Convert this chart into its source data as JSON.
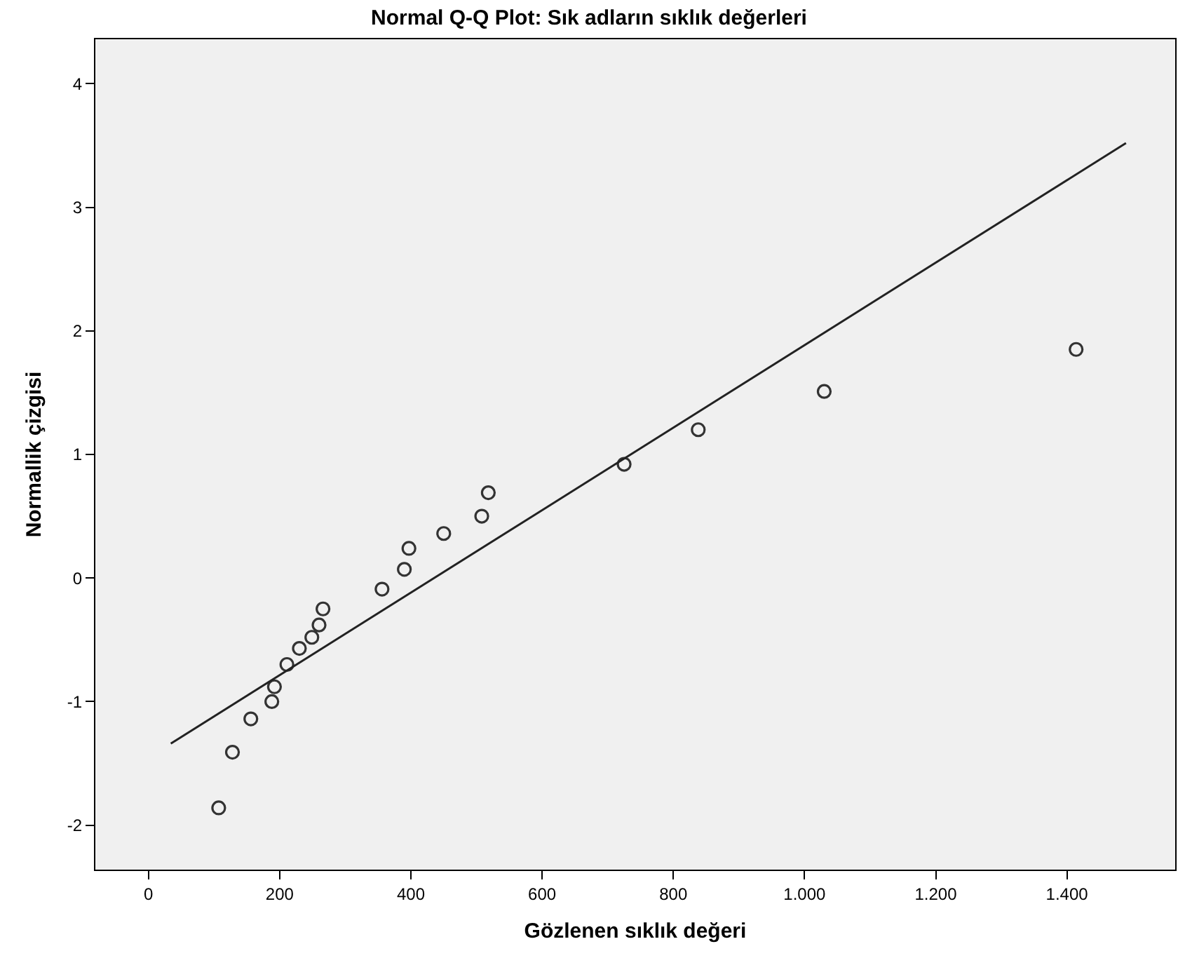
{
  "chart_data": {
    "type": "scatter",
    "title": "Normal Q-Q Plot: Sık adların sıklık değerleri",
    "xlabel": "Gözlenen sıklık değeri",
    "ylabel": "Normallik çizgisi",
    "x": [
      107,
      128,
      156,
      188,
      192,
      211,
      230,
      249,
      260,
      266,
      356,
      390,
      397,
      450,
      508,
      518,
      725,
      838,
      1030,
      1414
    ],
    "series": [
      {
        "color": "#333333",
        "marker": "circle",
        "values": [
          -1.86,
          -1.41,
          -1.14,
          -1.0,
          -0.88,
          -0.7,
          -0.57,
          -0.48,
          -0.38,
          -0.25,
          -0.09,
          0.07,
          0.24,
          0.36,
          0.5,
          0.69,
          0.92,
          1.2,
          1.51,
          1.85
        ]
      },
      {
        "type": "line",
        "color": "#222222",
        "marker": "none",
        "x": [
          34,
          1490
        ],
        "values": [
          -1.34,
          3.52
        ]
      }
    ],
    "grid": false,
    "xlim": [
      -81,
      1565
    ],
    "ylim": [
      -2.36,
      4.36
    ],
    "xticks": [
      0,
      200,
      400,
      600,
      800,
      {
        "value": 1000,
        "label": "1.000"
      },
      {
        "value": 1200,
        "label": "1.200"
      },
      {
        "value": 1400,
        "label": "1.400"
      }
    ],
    "yticks": [
      -2,
      -1,
      0,
      1,
      2,
      3,
      4
    ]
  }
}
